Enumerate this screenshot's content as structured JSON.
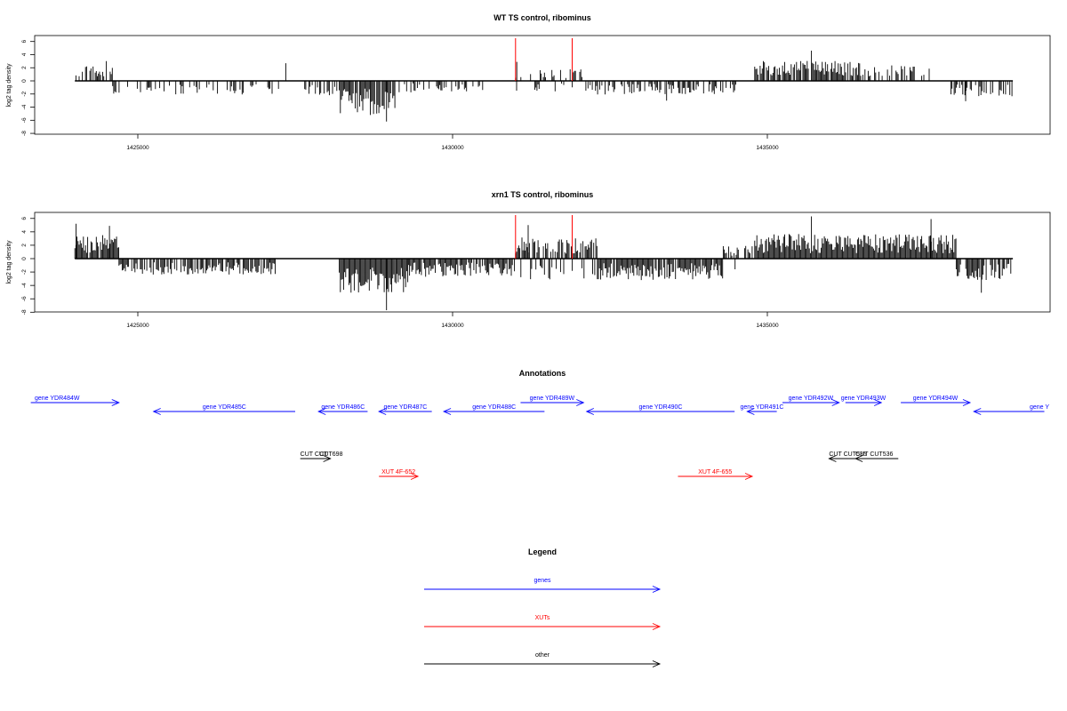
{
  "chart_data": [
    {
      "type": "bar",
      "title": "WT TS control, ribominus",
      "ylabel": "log2 tag density",
      "xlabel": "",
      "xlim": [
        1423300,
        1439000
      ],
      "ylim": [
        -8,
        7
      ],
      "yticks": [
        -8,
        -6,
        -4,
        -2,
        0,
        2,
        4,
        6
      ],
      "xticks": [
        1425000,
        1430000,
        1435000
      ],
      "x_tick_labels": [
        "1425000",
        "1430000",
        "1435000"
      ],
      "grid": false,
      "markers": [
        1431000,
        1431900
      ],
      "marker_color": "#ff0000",
      "series": [
        {
          "density_profile": [
            {
              "from": 1424000,
              "to": 1424600,
              "mean": 1.4,
              "sign": 1,
              "density": 0.5
            },
            {
              "from": 1424600,
              "to": 1427300,
              "mean": -1.3,
              "sign": -1,
              "density": 0.35
            },
            {
              "from": 1427300,
              "to": 1427600,
              "mean": 1.5,
              "sign": 1,
              "density": 0.1
            },
            {
              "from": 1427600,
              "to": 1428200,
              "mean": -1.4,
              "sign": -1,
              "density": 0.45
            },
            {
              "from": 1428200,
              "to": 1429100,
              "mean": -3.4,
              "sign": -1,
              "density": 0.9
            },
            {
              "from": 1429100,
              "to": 1430500,
              "mean": -1.1,
              "sign": -1,
              "density": 0.35
            },
            {
              "from": 1431000,
              "to": 1432100,
              "mean": 1.1,
              "sign": 0,
              "density": 0.4
            },
            {
              "from": 1432100,
              "to": 1434500,
              "mean": -1.3,
              "sign": -1,
              "density": 0.5
            },
            {
              "from": 1434800,
              "to": 1436500,
              "mean": 1.9,
              "sign": 1,
              "density": 0.85
            },
            {
              "from": 1436500,
              "to": 1437600,
              "mean": 1.5,
              "sign": 1,
              "density": 0.45
            },
            {
              "from": 1437900,
              "to": 1438900,
              "mean": -1.5,
              "sign": -1,
              "density": 0.5
            }
          ],
          "peaks": [
            {
              "x": 1424500,
              "y": 3.0
            },
            {
              "x": 1427350,
              "y": 2.7
            },
            {
              "x": 1428950,
              "y": -6.2
            },
            {
              "x": 1431020,
              "y": 2.9
            },
            {
              "x": 1433400,
              "y": -3.0
            },
            {
              "x": 1435700,
              "y": 4.6
            },
            {
              "x": 1438150,
              "y": -3.1
            }
          ]
        }
      ]
    },
    {
      "type": "bar",
      "title": "xrn1 TS control, ribominus",
      "ylabel": "log2 tag density",
      "xlabel": "",
      "xlim": [
        1423300,
        1439000
      ],
      "ylim": [
        -8,
        7
      ],
      "yticks": [
        -8,
        -6,
        -4,
        -2,
        0,
        2,
        4,
        6
      ],
      "xticks": [
        1425000,
        1430000,
        1435000
      ],
      "x_tick_labels": [
        "1425000",
        "1430000",
        "1435000"
      ],
      "grid": false,
      "markers": [
        1431000,
        1431900
      ],
      "marker_color": "#ff0000",
      "series": [
        {
          "density_profile": [
            {
              "from": 1424000,
              "to": 1424700,
              "mean": 2.2,
              "sign": 1,
              "density": 0.9
            },
            {
              "from": 1424700,
              "to": 1427200,
              "mean": -1.5,
              "sign": -1,
              "density": 0.7
            },
            {
              "from": 1427200,
              "to": 1428200,
              "mean": 0.0,
              "sign": 0,
              "density": 0.9
            },
            {
              "from": 1428200,
              "to": 1429300,
              "mean": -3.2,
              "sign": -1,
              "density": 1.0
            },
            {
              "from": 1429300,
              "to": 1431000,
              "mean": -1.7,
              "sign": -1,
              "density": 0.85
            },
            {
              "from": 1431000,
              "to": 1432300,
              "mean": 2.0,
              "sign": 0,
              "density": 0.95
            },
            {
              "from": 1432300,
              "to": 1434300,
              "mean": -2.0,
              "sign": -1,
              "density": 0.9
            },
            {
              "from": 1434300,
              "to": 1434800,
              "mean": 1.2,
              "sign": 0,
              "density": 0.6
            },
            {
              "from": 1434800,
              "to": 1438000,
              "mean": 2.3,
              "sign": 1,
              "density": 1.0
            },
            {
              "from": 1438000,
              "to": 1438900,
              "mean": -2.0,
              "sign": -1,
              "density": 0.7
            }
          ],
          "peaks": [
            {
              "x": 1424020,
              "y": 5.2
            },
            {
              "x": 1424550,
              "y": 4.9
            },
            {
              "x": 1428950,
              "y": -7.7
            },
            {
              "x": 1431200,
              "y": 5.0
            },
            {
              "x": 1435700,
              "y": 6.3
            },
            {
              "x": 1437600,
              "y": 5.9
            },
            {
              "x": 1438400,
              "y": -5.1
            }
          ]
        }
      ]
    }
  ],
  "annotations": {
    "title": "Annotations",
    "features": [
      {
        "label": "gene YDR484W",
        "start": 1423300,
        "end": 1424700,
        "strand": "+",
        "type": "gene",
        "row": 0
      },
      {
        "label": "gene YDR485C",
        "start": 1425250,
        "end": 1427500,
        "strand": "-",
        "type": "gene",
        "row": 1
      },
      {
        "label": "gene YDR486C",
        "start": 1427870,
        "end": 1428650,
        "strand": "-",
        "type": "gene",
        "row": 1
      },
      {
        "label": "gene YDR487C",
        "start": 1428830,
        "end": 1429670,
        "strand": "-",
        "type": "gene",
        "row": 1
      },
      {
        "label": "gene YDR488C",
        "start": 1429860,
        "end": 1431460,
        "strand": "-",
        "type": "gene",
        "row": 1
      },
      {
        "label": "gene YDR489W",
        "start": 1431080,
        "end": 1432080,
        "strand": "+",
        "type": "gene",
        "row": 0
      },
      {
        "label": "gene YDR490C",
        "start": 1432130,
        "end": 1434480,
        "strand": "-",
        "type": "gene",
        "row": 1
      },
      {
        "label": "gene YDR491C",
        "start": 1434680,
        "end": 1435150,
        "strand": "-",
        "type": "gene",
        "row": 1
      },
      {
        "label": "gene YDR492W",
        "start": 1435240,
        "end": 1436140,
        "strand": "+",
        "type": "gene",
        "row": 0
      },
      {
        "label": "gene YDR493W",
        "start": 1436240,
        "end": 1436810,
        "strand": "+",
        "type": "gene",
        "row": 0
      },
      {
        "label": "gene YDR494W",
        "start": 1437120,
        "end": 1438220,
        "strand": "+",
        "type": "gene",
        "row": 0
      },
      {
        "label": "gene Y",
        "start": 1438280,
        "end": 1439400,
        "strand": "-",
        "type": "gene",
        "row": 1
      },
      {
        "label": "CUT CUT",
        "start": 1427580,
        "end": 1428060,
        "strand": "+",
        "type": "other",
        "row": 3
      },
      {
        "label": "CUT698",
        "start": 1428000,
        "end": 1428000,
        "strand": "none",
        "type": "other-label",
        "row": 3
      },
      {
        "label": "XUT 4F-652",
        "start": 1428830,
        "end": 1429450,
        "strand": "+",
        "type": "xut",
        "row": 4
      },
      {
        "label": "XUT 4F-655",
        "start": 1433580,
        "end": 1434760,
        "strand": "+",
        "type": "xut",
        "row": 4
      },
      {
        "label": "CUT CUT535",
        "start": 1435980,
        "end": 1436810,
        "strand": "-",
        "type": "other",
        "row": 3
      },
      {
        "label": "CUT CUT536",
        "start": 1436400,
        "end": 1437080,
        "strand": "-",
        "type": "other",
        "row": 3
      }
    ]
  },
  "legend": {
    "title": "Legend",
    "items": [
      {
        "label": "genes",
        "color": "#0000ff"
      },
      {
        "label": "XUTs",
        "color": "#ff0000"
      },
      {
        "label": "other",
        "color": "#000000"
      }
    ]
  },
  "colors": {
    "gene": "#0000ff",
    "xut": "#ff0000",
    "other": "#000000",
    "axis": "#000000"
  }
}
